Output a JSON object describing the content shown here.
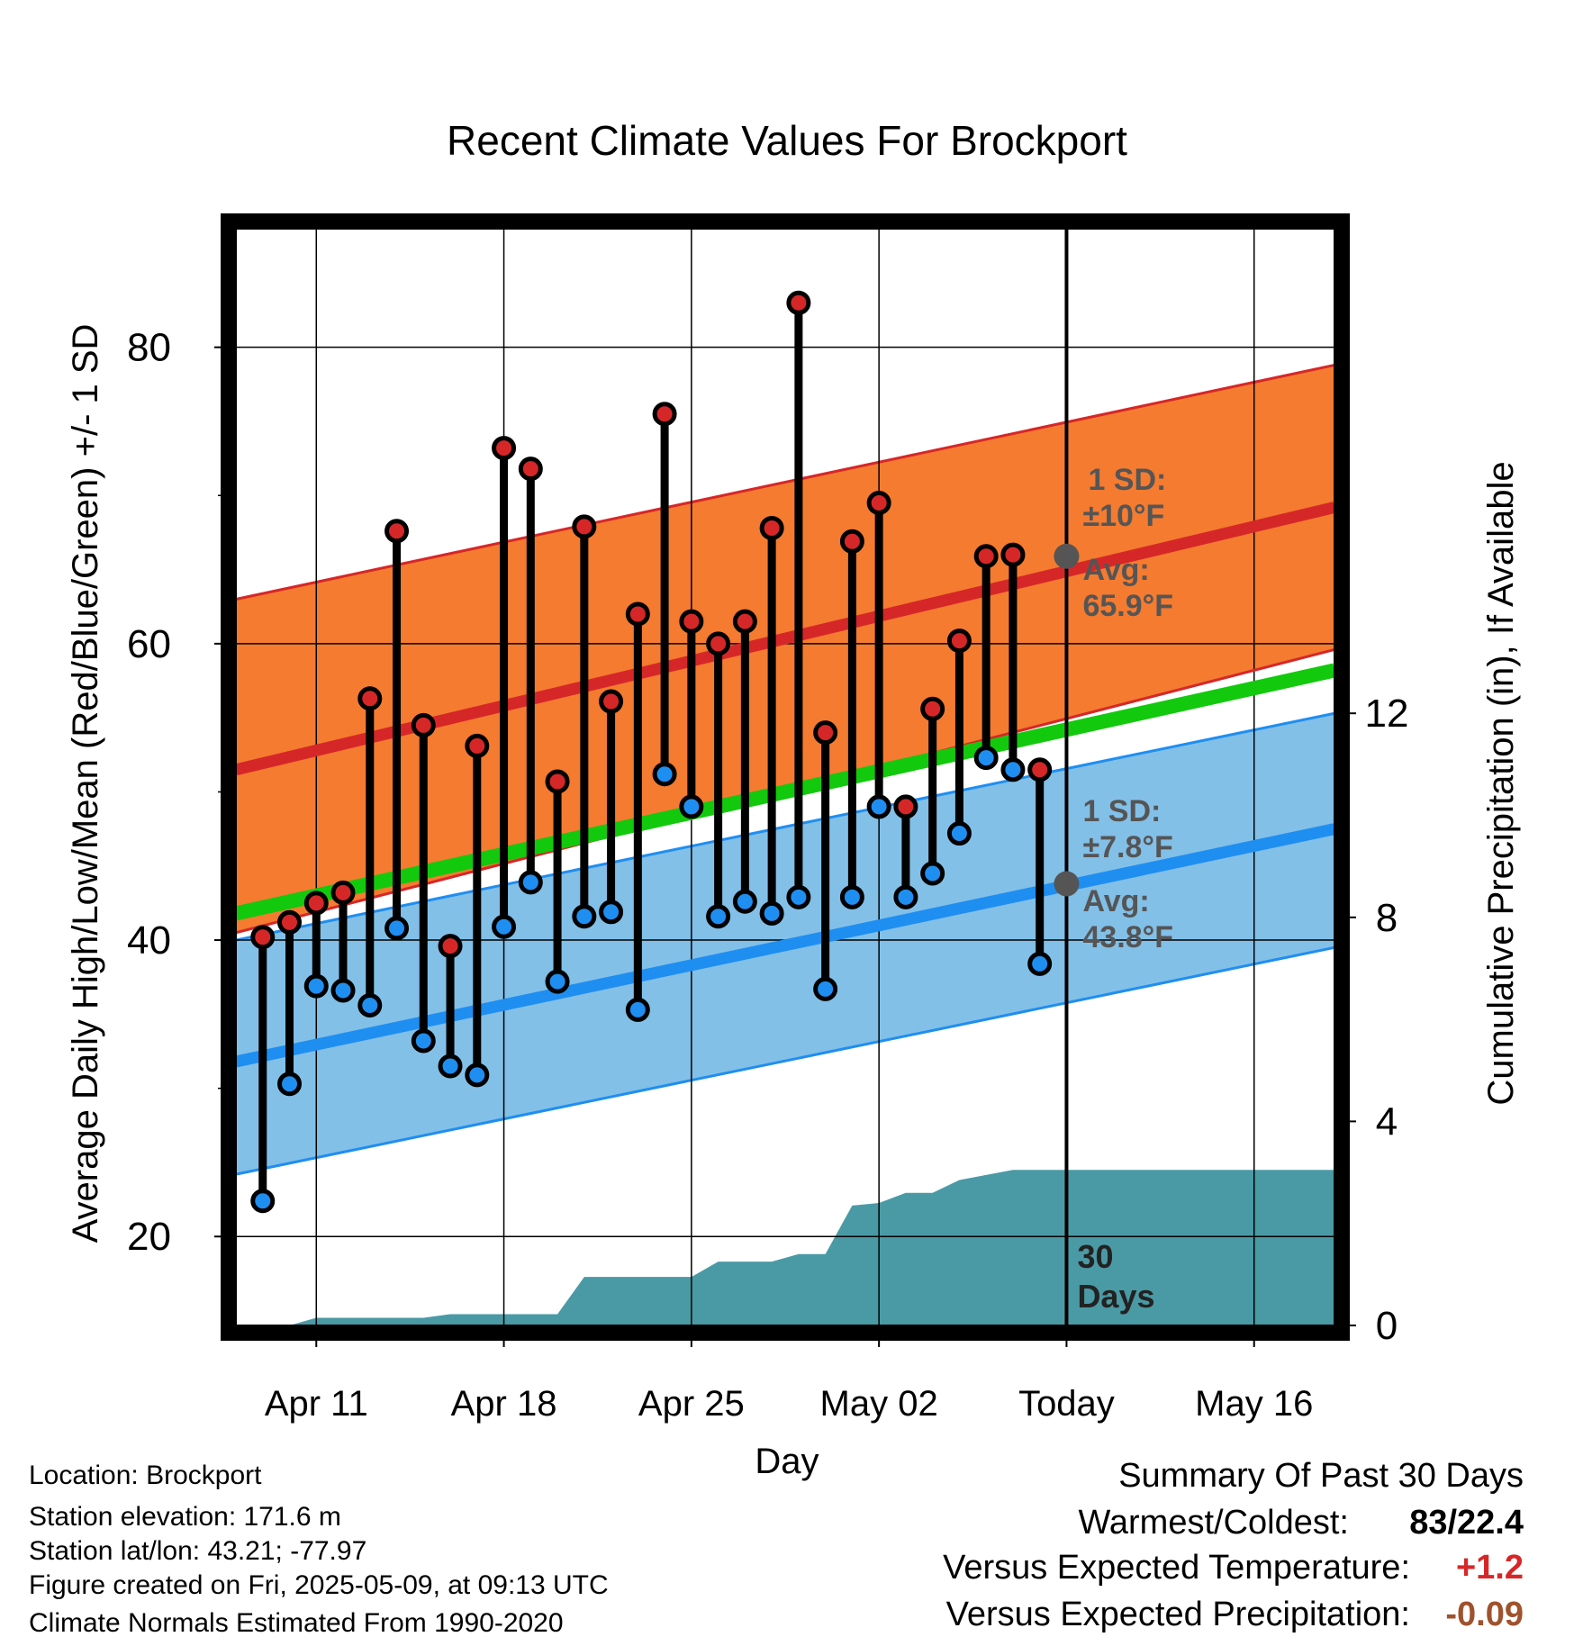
{
  "chart_data": {
    "type": "line",
    "title": "Recent Climate Values For Brockport",
    "xlabel": "Day",
    "ylabel": "Average Daily High/Low/Mean (Red/Blue/Green) +/- 1 SD",
    "y2label": "Cumulative Precipitation (in), If Available",
    "ylim": [
      14,
      88
    ],
    "y2lim": [
      0,
      21.5
    ],
    "yticks": [
      "20",
      "40",
      "60",
      "80"
    ],
    "y2ticks": [
      "0",
      "4",
      "8",
      "12"
    ],
    "xticks": [
      {
        "day": 11,
        "label": "Apr 11"
      },
      {
        "day": 18,
        "label": "Apr 18"
      },
      {
        "day": 25,
        "label": "Apr 25"
      },
      {
        "day": 32,
        "label": "May 02"
      },
      {
        "day": 39,
        "label": "Today"
      },
      {
        "day": 46,
        "label": "May 16"
      }
    ],
    "xlim": [
      8,
      49
    ],
    "grid": true,
    "today_line": {
      "label_top": "30",
      "label_bottom": "Days"
    },
    "normals": {
      "high_mean": {
        "start": 51.5,
        "end": 69.2
      },
      "high_band": {
        "start_low": 40.5,
        "start_high": 63.0,
        "end_low": 59.6,
        "end_high": 78.8
      },
      "low_mean": {
        "start": 31.8,
        "end": 47.5
      },
      "low_band": {
        "start_low": 24.2,
        "start_high": 40.0,
        "end_low": 39.5,
        "end_high": 55.3
      },
      "mean_line": {
        "start": 41.8,
        "end": 58.2
      }
    },
    "annotations": {
      "high_sd_line1": "1 SD:",
      "high_sd_line2": "±10°F",
      "high_avg_line1": "Avg:",
      "high_avg_line2": "65.9°F",
      "high_avg_value": 65.9,
      "low_sd_line1": "1 SD:",
      "low_sd_line2": "±7.8°F",
      "low_avg_line1": "Avg:",
      "low_avg_line2": "43.8°F",
      "low_avg_value": 43.8
    },
    "series": [
      {
        "name": "High",
        "color": "#d62728",
        "values": [
          40.2,
          41.2,
          42.5,
          43.2,
          56.3,
          67.6,
          54.5,
          39.6,
          53.1,
          73.2,
          71.8,
          50.7,
          67.9,
          56.1,
          62.0,
          75.5,
          61.5,
          60.0,
          61.5,
          67.8,
          83.0,
          54.0,
          66.9,
          69.5,
          49.0,
          55.6,
          60.2,
          65.9,
          66.0,
          51.5
        ]
      },
      {
        "name": "Low",
        "color": "#1f8ef1",
        "values": [
          22.4,
          30.3,
          36.9,
          36.6,
          35.6,
          40.8,
          33.2,
          31.5,
          30.9,
          40.9,
          43.9,
          37.2,
          41.6,
          41.9,
          35.3,
          51.2,
          49.0,
          41.6,
          42.6,
          41.8,
          42.9,
          36.7,
          42.9,
          49.0,
          42.9,
          44.5,
          47.2,
          52.3,
          51.5,
          38.4
        ]
      }
    ],
    "days": [
      9,
      10,
      11,
      12,
      13,
      14,
      15,
      16,
      17,
      18,
      19,
      20,
      21,
      22,
      23,
      24,
      25,
      26,
      27,
      28,
      29,
      30,
      31,
      32,
      33,
      34,
      35,
      36,
      37,
      38
    ],
    "precip": {
      "color": "#4a9aa5",
      "x": [
        8,
        10,
        11,
        15,
        16,
        20,
        21,
        25,
        26,
        28,
        29,
        30,
        31,
        32,
        33,
        34,
        35,
        36,
        37,
        49
      ],
      "values": [
        0,
        0,
        0.15,
        0.15,
        0.22,
        0.22,
        0.95,
        0.95,
        1.25,
        1.25,
        1.4,
        1.4,
        2.35,
        2.4,
        2.6,
        2.6,
        2.85,
        2.95,
        3.05,
        3.05
      ]
    }
  },
  "footer": {
    "location": "Location: Brockport",
    "elevation": "Station elevation: 171.6 m",
    "latlon": "Station lat/lon: 43.21; -77.97",
    "created": "Figure created on Fri, 2025-05-09, at 09:13 UTC",
    "normals": "Climate Normals Estimated From 1990-2020"
  },
  "summary": {
    "title": "Summary Of Past 30 Days",
    "warmest_label": "Warmest/Coldest:",
    "warmest_value": "83/22.4",
    "temp_label": "Versus Expected Temperature:",
    "temp_value": "+1.2",
    "temp_color": "#d62728",
    "precip_label": "Versus Expected Precipitation:",
    "precip_value": "-0.09",
    "precip_color": "#a0522d"
  }
}
